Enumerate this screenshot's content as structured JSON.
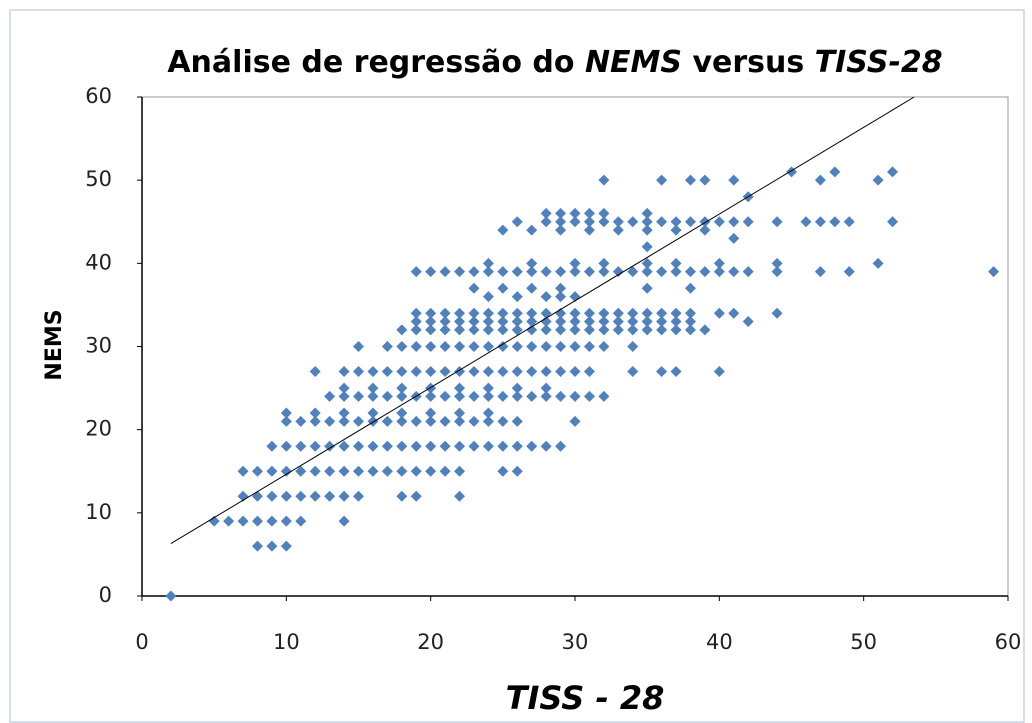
{
  "chart_data": {
    "type": "scatter",
    "title_parts": [
      {
        "text": "Análise de regressão do ",
        "italic": false
      },
      {
        "text": "NEMS",
        "italic": true
      },
      {
        "text": " versus ",
        "italic": false
      },
      {
        "text": "TISS-28",
        "italic": true
      }
    ],
    "x_label": "TISS - 28",
    "y_label": "NEMS",
    "color": "#4f81bd",
    "xlim": [
      0,
      60
    ],
    "ylim": [
      0,
      60
    ],
    "xticks": [
      0,
      10,
      20,
      30,
      40,
      50,
      60
    ],
    "yticks": [
      0,
      10,
      20,
      30,
      40,
      50,
      60
    ],
    "trendline": {
      "x": [
        2,
        53.5
      ],
      "y": [
        6.3,
        60
      ]
    },
    "x": [
      2,
      8,
      9,
      10,
      5,
      6,
      7,
      8,
      9,
      10,
      11,
      14,
      7,
      8,
      9,
      10,
      11,
      12,
      13,
      14,
      15,
      18,
      19,
      22,
      7,
      8,
      9,
      10,
      11,
      12,
      13,
      14,
      15,
      16,
      17,
      18,
      19,
      20,
      21,
      22,
      25,
      26,
      9,
      10,
      11,
      12,
      13,
      14,
      15,
      16,
      17,
      18,
      19,
      20,
      21,
      22,
      23,
      24,
      25,
      26,
      27,
      28,
      29,
      10,
      11,
      12,
      13,
      14,
      15,
      16,
      17,
      18,
      19,
      20,
      21,
      22,
      23,
      24,
      25,
      26,
      30,
      10,
      12,
      14,
      16,
      18,
      20,
      22,
      24,
      13,
      14,
      15,
      16,
      17,
      18,
      19,
      20,
      21,
      22,
      23,
      24,
      25,
      26,
      27,
      28,
      29,
      30,
      31,
      32,
      14,
      16,
      18,
      20,
      22,
      24,
      26,
      28,
      12,
      14,
      15,
      16,
      17,
      18,
      19,
      20,
      21,
      22,
      23,
      24,
      25,
      26,
      27,
      28,
      29,
      30,
      31,
      34,
      36,
      37,
      40,
      15,
      17,
      18,
      19,
      20,
      21,
      22,
      23,
      24,
      25,
      26,
      27,
      28,
      29,
      30,
      31,
      32,
      34,
      18,
      19,
      20,
      21,
      22,
      23,
      24,
      25,
      26,
      27,
      28,
      29,
      30,
      31,
      32,
      33,
      34,
      35,
      36,
      37,
      38,
      39,
      19,
      20,
      21,
      22,
      23,
      24,
      25,
      26,
      27,
      28,
      29,
      30,
      31,
      32,
      33,
      34,
      35,
      36,
      37,
      38,
      42,
      19,
      20,
      21,
      22,
      23,
      24,
      25,
      26,
      27,
      28,
      29,
      30,
      31,
      32,
      33,
      34,
      35,
      36,
      37,
      38,
      40,
      41,
      44,
      24,
      26,
      28,
      29,
      30,
      23,
      25,
      27,
      29,
      35,
      38,
      19,
      20,
      21,
      22,
      23,
      24,
      25,
      26,
      27,
      28,
      29,
      30,
      31,
      32,
      33,
      34,
      35,
      36,
      37,
      38,
      39,
      40,
      41,
      42,
      44,
      47,
      49,
      59,
      24,
      27,
      30,
      32,
      35,
      37,
      40,
      44,
      51,
      25,
      27,
      29,
      31,
      33,
      35,
      37,
      39,
      26,
      28,
      29,
      30,
      31,
      32,
      33,
      34,
      35,
      36,
      37,
      38,
      39,
      40,
      41,
      42,
      44,
      46,
      47,
      48,
      49,
      52,
      28,
      29,
      30,
      31,
      32,
      35,
      32,
      36,
      38,
      39,
      41,
      47,
      51,
      45,
      48,
      52,
      42,
      41,
      35
    ],
    "values": [
      0,
      6,
      6,
      6,
      9,
      9,
      9,
      9,
      9,
      9,
      9,
      9,
      12,
      12,
      12,
      12,
      12,
      12,
      12,
      12,
      12,
      12,
      12,
      12,
      15,
      15,
      15,
      15,
      15,
      15,
      15,
      15,
      15,
      15,
      15,
      15,
      15,
      15,
      15,
      15,
      15,
      15,
      18,
      18,
      18,
      18,
      18,
      18,
      18,
      18,
      18,
      18,
      18,
      18,
      18,
      18,
      18,
      18,
      18,
      18,
      18,
      18,
      18,
      21,
      21,
      21,
      21,
      21,
      21,
      21,
      21,
      21,
      21,
      21,
      21,
      21,
      21,
      21,
      21,
      21,
      21,
      22,
      22,
      22,
      22,
      22,
      22,
      22,
      22,
      24,
      24,
      24,
      24,
      24,
      24,
      24,
      24,
      24,
      24,
      24,
      24,
      24,
      24,
      24,
      24,
      24,
      24,
      24,
      24,
      25,
      25,
      25,
      25,
      25,
      25,
      25,
      25,
      27,
      27,
      27,
      27,
      27,
      27,
      27,
      27,
      27,
      27,
      27,
      27,
      27,
      27,
      27,
      27,
      27,
      27,
      27,
      27,
      27,
      27,
      27,
      30,
      30,
      30,
      30,
      30,
      30,
      30,
      30,
      30,
      30,
      30,
      30,
      30,
      30,
      30,
      30,
      30,
      30,
      32,
      32,
      32,
      32,
      32,
      32,
      32,
      32,
      32,
      32,
      32,
      32,
      32,
      32,
      32,
      32,
      32,
      32,
      32,
      32,
      32,
      32,
      33,
      33,
      33,
      33,
      33,
      33,
      33,
      33,
      33,
      33,
      33,
      33,
      33,
      33,
      33,
      33,
      33,
      33,
      33,
      33,
      33,
      34,
      34,
      34,
      34,
      34,
      34,
      34,
      34,
      34,
      34,
      34,
      34,
      34,
      34,
      34,
      34,
      34,
      34,
      34,
      34,
      34,
      34,
      34,
      36,
      36,
      36,
      36,
      36,
      37,
      37,
      37,
      37,
      37,
      37,
      39,
      39,
      39,
      39,
      39,
      39,
      39,
      39,
      39,
      39,
      39,
      39,
      39,
      39,
      39,
      39,
      39,
      39,
      39,
      39,
      39,
      39,
      39,
      39,
      39,
      39,
      39,
      39,
      40,
      40,
      40,
      40,
      40,
      40,
      40,
      40,
      40,
      44,
      44,
      44,
      44,
      44,
      44,
      44,
      44,
      45,
      45,
      45,
      45,
      45,
      45,
      45,
      45,
      45,
      45,
      45,
      45,
      45,
      45,
      45,
      45,
      45,
      45,
      45,
      45,
      45,
      45,
      46,
      46,
      46,
      46,
      46,
      46,
      50,
      50,
      50,
      50,
      50,
      50,
      50,
      51,
      51,
      51,
      48,
      43,
      42
    ]
  }
}
